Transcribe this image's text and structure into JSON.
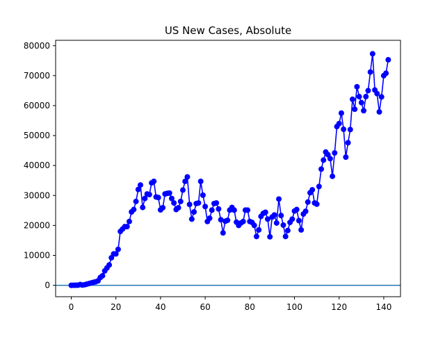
{
  "chart_data": {
    "type": "line",
    "title": "US New Cases, Absolute",
    "xlabel": "",
    "ylabel": "",
    "xlim": [
      -7,
      147.5
    ],
    "ylim": [
      -3800,
      81800
    ],
    "x_ticks": [
      0,
      20,
      40,
      60,
      80,
      100,
      120,
      140
    ],
    "y_ticks": [
      0,
      10000,
      20000,
      30000,
      40000,
      50000,
      60000,
      70000,
      80000
    ],
    "grid": false,
    "legend": "none",
    "series": [
      {
        "color": "#0000ff",
        "marker": "circle",
        "x_start": 0,
        "x_step": 1,
        "values": [
          0,
          20,
          30,
          50,
          250,
          100,
          200,
          400,
          600,
          800,
          1000,
          1200,
          1500,
          2600,
          3200,
          4800,
          5800,
          6800,
          9200,
          10500,
          10500,
          12000,
          18000,
          18800,
          19600,
          19600,
          21300,
          24500,
          25300,
          28000,
          32000,
          33500,
          26000,
          29000,
          30500,
          30300,
          34200,
          34700,
          29500,
          29300,
          25200,
          25900,
          30500,
          30700,
          30800,
          29000,
          27500,
          25300,
          25900,
          28000,
          31800,
          34700,
          36200,
          27000,
          22100,
          24500,
          27300,
          27500,
          34700,
          30100,
          26300,
          21300,
          22400,
          25100,
          27300,
          27500,
          25500,
          21900,
          17500,
          21400,
          21700,
          25100,
          26000,
          25100,
          21100,
          20000,
          20800,
          21300,
          25100,
          25100,
          21300,
          21000,
          20000,
          16300,
          18500,
          23000,
          24000,
          24400,
          22100,
          16200,
          22800,
          23500,
          20800,
          28800,
          23300,
          20100,
          16300,
          18300,
          21000,
          22100,
          24800,
          25300,
          21600,
          18500,
          23800,
          24700,
          27800,
          30900,
          31900,
          27500,
          27100,
          33000,
          38800,
          41800,
          44500,
          43600,
          42300,
          36400,
          44200,
          53000,
          54000,
          57500,
          52100,
          42800,
          47600,
          52000,
          62100,
          58800,
          66300,
          63000,
          61000,
          58300,
          63000,
          65000,
          71200,
          77300,
          65200,
          64000,
          57900,
          62900,
          70000,
          70800,
          75300
        ]
      }
    ],
    "reference_line": {
      "y": 0,
      "color": "#1f77b4"
    }
  }
}
